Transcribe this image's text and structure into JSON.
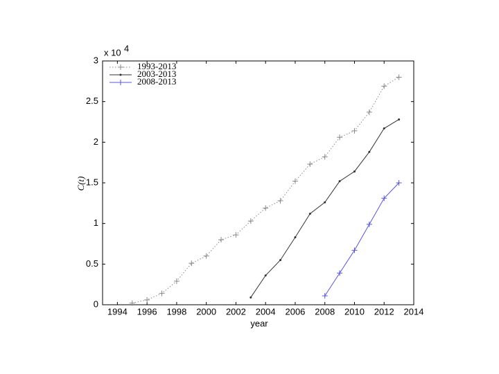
{
  "chart_data": {
    "type": "line",
    "x_label": "year",
    "y_label": "C(t)",
    "y_scale_base": "x 10",
    "y_scale_exponent": "4",
    "xlim": [
      1993,
      2014
    ],
    "xticks": [
      1994,
      1996,
      1998,
      2000,
      2002,
      2004,
      2006,
      2008,
      2010,
      2012,
      2014
    ],
    "ylim": [
      0,
      3
    ],
    "yticks": [
      0,
      0.5,
      1,
      1.5,
      2,
      2.5,
      3
    ],
    "legend": "upper left",
    "series": [
      {
        "name": "1993-2013",
        "color": "#888888",
        "style": "dotted",
        "marker": "plus",
        "x": [
          1995,
          1996,
          1997,
          1998,
          1999,
          2000,
          2001,
          2002,
          2003,
          2004,
          2005,
          2006,
          2007,
          2008,
          2009,
          2010,
          2011,
          2012,
          2013
        ],
        "values": [
          0.02,
          0.06,
          0.14,
          0.29,
          0.51,
          0.6,
          0.8,
          0.86,
          1.03,
          1.19,
          1.28,
          1.52,
          1.73,
          1.82,
          2.06,
          2.14,
          2.37,
          2.69,
          2.8
        ]
      },
      {
        "name": "2003-2013",
        "color": "#333333",
        "style": "solid",
        "marker": "dot",
        "x": [
          2003,
          2004,
          2005,
          2006,
          2007,
          2008,
          2009,
          2010,
          2011,
          2012,
          2013
        ],
        "values": [
          0.09,
          0.36,
          0.55,
          0.83,
          1.12,
          1.26,
          1.52,
          1.64,
          1.88,
          2.17,
          2.28
        ]
      },
      {
        "name": "2008-2013",
        "color": "#5555dd",
        "style": "solid",
        "marker": "plus",
        "x": [
          2008,
          2009,
          2010,
          2011,
          2012,
          2013
        ],
        "values": [
          0.11,
          0.39,
          0.67,
          0.99,
          1.31,
          1.5
        ]
      }
    ]
  }
}
